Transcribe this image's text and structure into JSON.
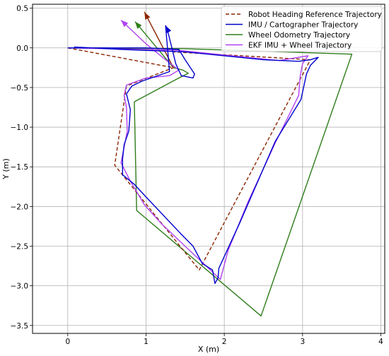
{
  "chart_data": {
    "type": "line",
    "title": "",
    "xlabel": "X (m)",
    "ylabel": "Y (m)",
    "xlim": [
      -0.45,
      4.05
    ],
    "ylim": [
      -3.6,
      0.55
    ],
    "xticks": [
      0,
      1,
      2,
      3,
      4
    ],
    "yticks": [
      0.5,
      0.0,
      -0.5,
      -1.0,
      -1.5,
      -2.0,
      -2.5,
      -3.0,
      -3.5
    ],
    "xtick_labels": [
      "0",
      "1",
      "2",
      "3",
      "4"
    ],
    "ytick_labels": [
      "0.5",
      "0.0",
      "−0.5",
      "−1.0",
      "−1.5",
      "−2.0",
      "−2.5",
      "−3.0",
      "−3.5"
    ],
    "grid": true,
    "legend_position": "top-right",
    "series": [
      {
        "name": "Robot Heading Reference Trajectory",
        "color": "#8b2500",
        "style": "dashed",
        "points": [
          [
            0,
            0
          ],
          [
            1.35,
            -0.25
          ],
          [
            0.98,
            0.45
          ],
          [
            1.35,
            -0.25
          ],
          [
            0.75,
            -0.48
          ],
          [
            0.6,
            -1.48
          ],
          [
            1.68,
            -2.8
          ],
          [
            3.1,
            -0.15
          ],
          [
            1.35,
            -0.05
          ]
        ]
      },
      {
        "name": "IMU / Cartographer Trajectory",
        "color": "#0000cd",
        "style": "solid",
        "points": [
          [
            0,
            0
          ],
          [
            1.0,
            0
          ],
          [
            1.42,
            -0.02
          ],
          [
            1.5,
            -0.15
          ],
          [
            1.62,
            -0.33
          ],
          [
            1.6,
            -0.38
          ],
          [
            1.45,
            -0.35
          ],
          [
            1.38,
            -0.2
          ],
          [
            1.32,
            0.04
          ],
          [
            1.27,
            0.24
          ],
          [
            1.25,
            0.28
          ],
          [
            1.3,
            -0.3
          ],
          [
            0.95,
            -0.42
          ],
          [
            0.82,
            -0.48
          ],
          [
            0.75,
            -0.58
          ],
          [
            0.8,
            -0.78
          ],
          [
            0.78,
            -1.05
          ],
          [
            0.72,
            -1.22
          ],
          [
            0.7,
            -1.4
          ],
          [
            0.7,
            -1.6
          ],
          [
            0.85,
            -1.72
          ],
          [
            1.0,
            -1.88
          ],
          [
            1.45,
            -2.35
          ],
          [
            1.6,
            -2.5
          ],
          [
            1.72,
            -2.72
          ],
          [
            1.85,
            -2.8
          ],
          [
            1.88,
            -2.97
          ],
          [
            1.92,
            -2.9
          ],
          [
            1.93,
            -2.78
          ],
          [
            2.2,
            -2.2
          ],
          [
            2.65,
            -1.18
          ],
          [
            2.98,
            -0.65
          ],
          [
            3.05,
            -0.33
          ],
          [
            3.1,
            -0.22
          ],
          [
            3.2,
            -0.12
          ],
          [
            3.1,
            -0.15
          ],
          [
            2.95,
            -0.17
          ],
          [
            2.5,
            -0.15
          ],
          [
            1.5,
            -0.05
          ],
          [
            0.7,
            -0.02
          ],
          [
            0.08,
            0.01
          ]
        ]
      },
      {
        "name": "Wheel Odometry Trajectory",
        "color": "#2e7d1a",
        "style": "solid",
        "points": [
          [
            0,
            0
          ],
          [
            1.5,
            -0.01
          ],
          [
            3.63,
            -0.08
          ],
          [
            2.47,
            -3.38
          ],
          [
            0.88,
            -2.05
          ],
          [
            0.85,
            -0.68
          ],
          [
            1.42,
            -0.38
          ],
          [
            1.54,
            -0.32
          ],
          [
            1.47,
            -0.28
          ],
          [
            1.35,
            -0.25
          ],
          [
            0.86,
            0.33
          ]
        ]
      },
      {
        "name": "EKF IMU + Wheel Trajectory",
        "color": "#b042f0",
        "style": "solid",
        "points": [
          [
            0,
            0
          ],
          [
            1.4,
            -0.03
          ],
          [
            2.7,
            -0.16
          ],
          [
            3.07,
            -0.1
          ],
          [
            3.0,
            -0.2
          ],
          [
            2.97,
            -0.35
          ],
          [
            2.95,
            -0.6
          ],
          [
            2.65,
            -1.2
          ],
          [
            2.3,
            -1.95
          ],
          [
            2.05,
            -2.55
          ],
          [
            1.95,
            -2.92
          ],
          [
            1.8,
            -2.78
          ],
          [
            1.52,
            -2.52
          ],
          [
            1.2,
            -2.22
          ],
          [
            0.98,
            -1.98
          ],
          [
            0.8,
            -1.68
          ],
          [
            0.68,
            -1.45
          ],
          [
            0.76,
            -1.05
          ],
          [
            0.75,
            -0.75
          ],
          [
            0.72,
            -0.6
          ],
          [
            0.75,
            -0.47
          ],
          [
            1.0,
            -0.38
          ],
          [
            1.3,
            -0.35
          ],
          [
            1.42,
            -0.28
          ],
          [
            1.25,
            -0.15
          ],
          [
            1.0,
            0.05
          ],
          [
            0.68,
            0.35
          ]
        ]
      }
    ],
    "arrows": [
      {
        "series": "Robot Heading Reference Trajectory",
        "from": [
          1.35,
          -0.25
        ],
        "to": [
          0.98,
          0.45
        ]
      },
      {
        "series": "IMU / Cartographer Trajectory",
        "from": [
          1.27,
          0.24
        ],
        "to": [
          1.25,
          0.28
        ]
      },
      {
        "series": "Wheel Odometry Trajectory",
        "from": [
          1.35,
          -0.25
        ],
        "to": [
          0.86,
          0.33
        ]
      },
      {
        "series": "EKF IMU + Wheel Trajectory",
        "from": [
          1.0,
          0.05
        ],
        "to": [
          0.68,
          0.35
        ]
      }
    ]
  }
}
